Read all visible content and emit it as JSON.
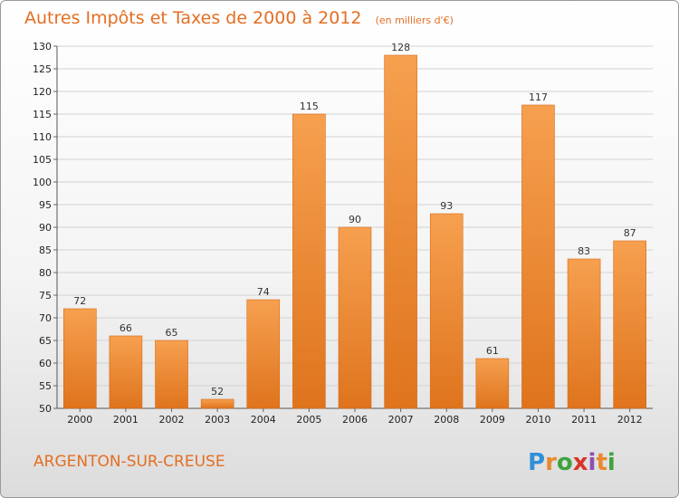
{
  "title": "Autres Impôts et Taxes de 2000 à 2012",
  "unit": "(en milliers d'€)",
  "location": "ARGENTON-SUR-CREUSE",
  "logo": {
    "text": "Proxiti",
    "letters": [
      "P",
      "r",
      "o",
      "x",
      "i",
      "t",
      "i"
    ],
    "colors": [
      "#2f8fd8",
      "#e8892e",
      "#3fa33f",
      "#d9342b",
      "#8e4fb0",
      "#e8892e",
      "#3fa33f"
    ]
  },
  "colors": {
    "accent": "#e46e22",
    "bar_light": "#f6a04f",
    "bar_dark": "#e0761f"
  },
  "chart_data": {
    "type": "bar",
    "title": "Autres Impôts et Taxes de 2000 à 2012",
    "subtitle": "(en milliers d'€)",
    "categories": [
      "2000",
      "2001",
      "2002",
      "2003",
      "2004",
      "2005",
      "2006",
      "2007",
      "2008",
      "2009",
      "2010",
      "2011",
      "2012"
    ],
    "values": [
      72,
      66,
      65,
      52,
      74,
      115,
      90,
      128,
      93,
      61,
      117,
      83,
      87
    ],
    "ylim": [
      50,
      130
    ],
    "yticks": [
      50,
      55,
      60,
      65,
      70,
      75,
      80,
      85,
      90,
      95,
      100,
      105,
      110,
      115,
      120,
      125,
      130
    ],
    "grid": true,
    "xlabel": "",
    "ylabel": ""
  }
}
